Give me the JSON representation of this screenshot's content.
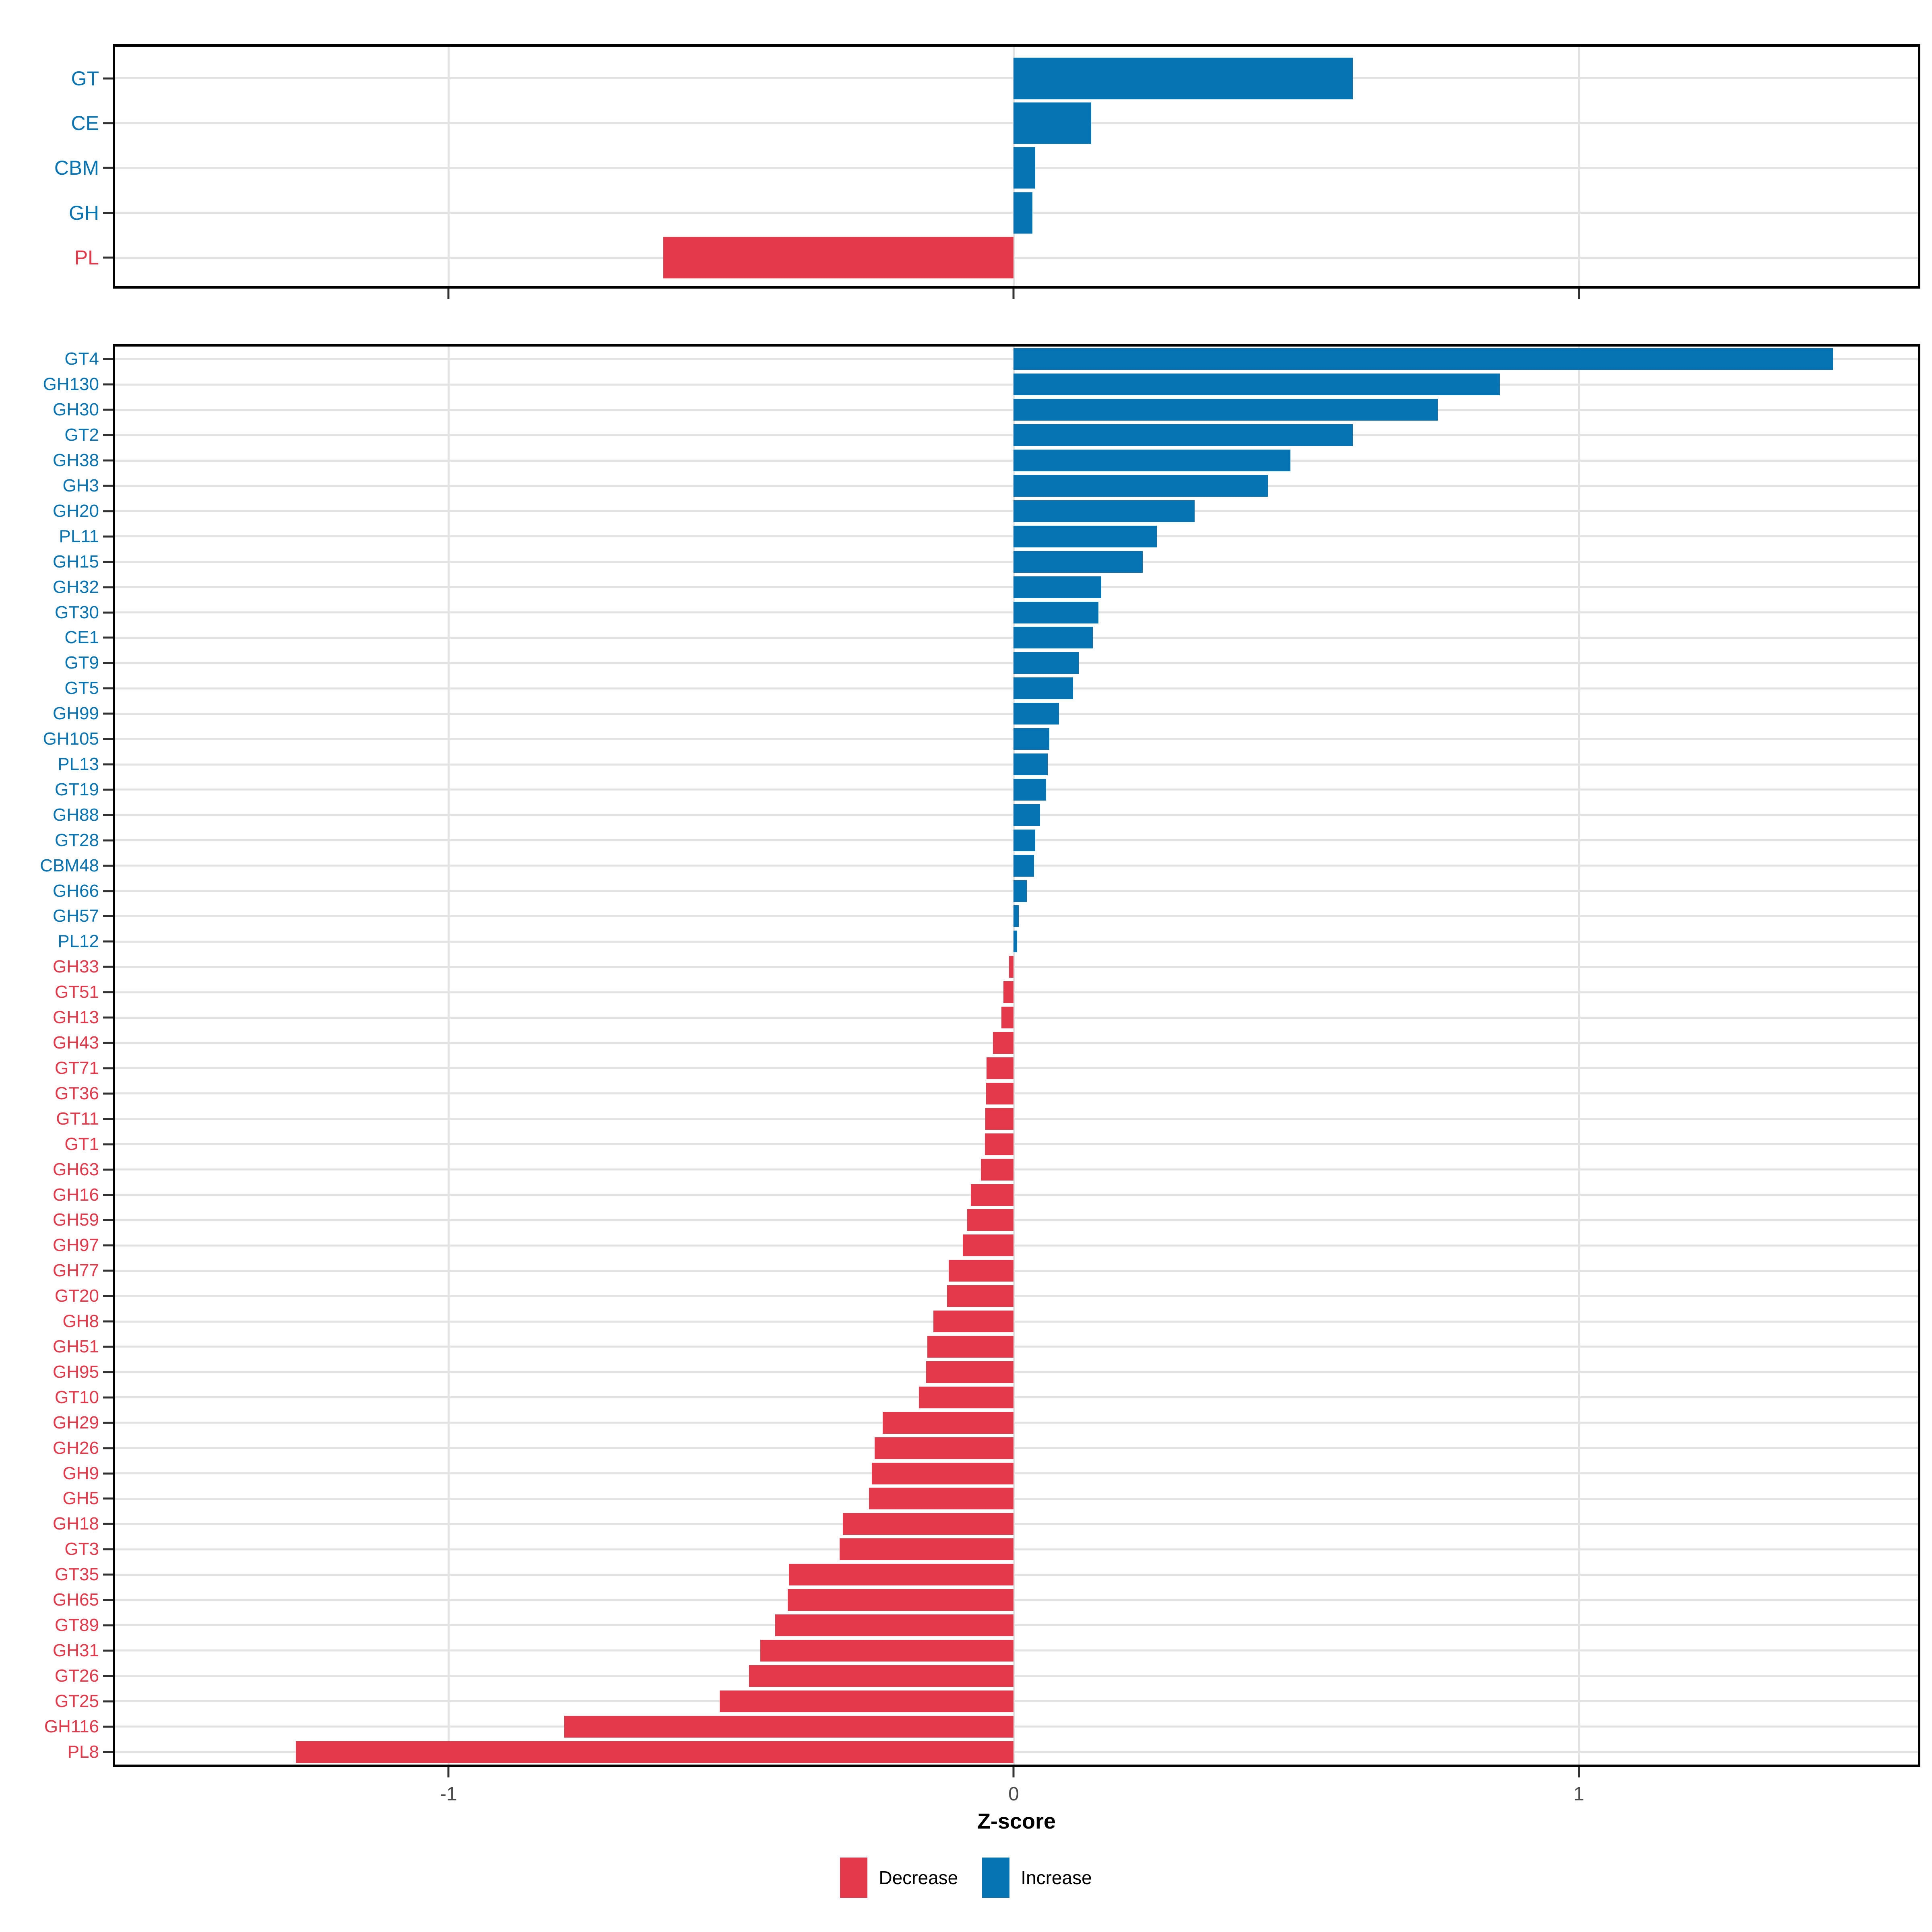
{
  "colors": {
    "increase": "#0673B2",
    "decrease": "#E3394A",
    "grid": "#E3E3E3",
    "panel_border": "#000000",
    "tick": "#333333",
    "axis_text": "#4D4D4D"
  },
  "legend": {
    "items": [
      {
        "label": "Decrease",
        "color": "#E3394A"
      },
      {
        "label": "Increase",
        "color": "#0673B2"
      }
    ]
  },
  "chart_data": {
    "type": "bar",
    "orientation": "horizontal",
    "xlabel": "Z-score",
    "x_ticks": [
      -1,
      0,
      1
    ],
    "x_tick_labels": [
      "-1",
      "0",
      "1"
    ],
    "xlim": [
      -1.59,
      1.6
    ],
    "grid": "major vertical lines at -1,0,1 and one light horizontal line per category row",
    "legend_position": "bottom",
    "color_rule": "positive values blue (Increase), negative values red (Decrease); category labels share the bar color",
    "panels": [
      {
        "name": "cazyme-classes",
        "categories": [
          "GT",
          "CE",
          "CBM",
          "GH",
          "PL"
        ],
        "values": [
          0.6,
          0.137,
          0.038,
          0.033,
          -0.62
        ]
      },
      {
        "name": "cazyme-families",
        "categories": [
          "GT4",
          "GH130",
          "GH30",
          "GT2",
          "GH38",
          "GH3",
          "GH20",
          "PL11",
          "GH15",
          "GH32",
          "GT30",
          "CE1",
          "GT9",
          "GT5",
          "GH99",
          "GH105",
          "PL13",
          "GT19",
          "GH88",
          "GT28",
          "CBM48",
          "GH66",
          "GH57",
          "PL12",
          "GH33",
          "GT51",
          "GH13",
          "GH43",
          "GT71",
          "GT36",
          "GT11",
          "GT1",
          "GH63",
          "GH16",
          "GH59",
          "GH97",
          "GH77",
          "GT20",
          "GH8",
          "GH51",
          "GH95",
          "GT10",
          "GH29",
          "GH26",
          "GH9",
          "GH5",
          "GH18",
          "GT3",
          "GT35",
          "GH65",
          "GT89",
          "GH31",
          "GT26",
          "GT25",
          "GH116",
          "PL8"
        ],
        "values": [
          1.45,
          0.86,
          0.75,
          0.6,
          0.49,
          0.45,
          0.32,
          0.253,
          0.228,
          0.155,
          0.15,
          0.14,
          0.115,
          0.105,
          0.08,
          0.063,
          0.06,
          0.057,
          0.047,
          0.038,
          0.036,
          0.023,
          0.009,
          0.006,
          -0.008,
          -0.018,
          -0.022,
          -0.037,
          -0.048,
          -0.049,
          -0.05,
          -0.051,
          -0.058,
          -0.076,
          -0.082,
          -0.09,
          -0.115,
          -0.118,
          -0.142,
          -0.153,
          -0.155,
          -0.168,
          -0.232,
          -0.246,
          -0.251,
          -0.256,
          -0.302,
          -0.308,
          -0.398,
          -0.4,
          -0.422,
          -0.448,
          -0.468,
          -0.52,
          -0.795,
          -1.27
        ]
      }
    ]
  }
}
